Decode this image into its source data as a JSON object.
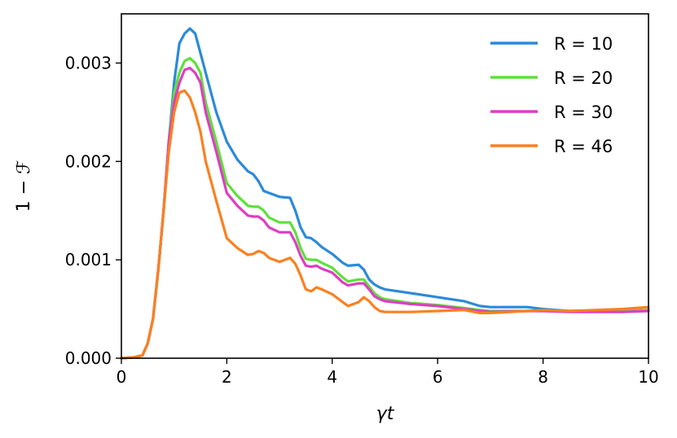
{
  "chart_data": {
    "type": "line",
    "xlabel": "γt",
    "ylabel": "1 − ℱ",
    "xlim": [
      0,
      10
    ],
    "ylim": [
      0,
      0.0035
    ],
    "xticks": [
      "0",
      "2",
      "4",
      "6",
      "8",
      "10"
    ],
    "yticks": [
      "0.000",
      "0.001",
      "0.002",
      "0.003"
    ],
    "legend_position": "top-right",
    "grid": false,
    "series": [
      {
        "name": "R = 10",
        "color": "#2b8ad9",
        "x": [
          0,
          0.25,
          0.4,
          0.5,
          0.6,
          0.7,
          0.8,
          0.9,
          1.0,
          1.1,
          1.2,
          1.3,
          1.4,
          1.5,
          1.6,
          1.8,
          2.0,
          2.2,
          2.4,
          2.5,
          2.6,
          2.7,
          2.8,
          3.0,
          3.2,
          3.3,
          3.4,
          3.5,
          3.6,
          3.7,
          3.8,
          4.0,
          4.2,
          4.3,
          4.5,
          4.6,
          4.7,
          4.8,
          4.9,
          5.0,
          5.5,
          6.0,
          6.5,
          6.8,
          7.0,
          7.7,
          8.0,
          8.5,
          9.0,
          9.5,
          10.0
        ],
        "y": [
          0,
          1e-05,
          3e-05,
          0.00015,
          0.0004,
          0.0009,
          0.0015,
          0.0022,
          0.0028,
          0.0032,
          0.0033,
          0.00335,
          0.0033,
          0.0031,
          0.0029,
          0.0025,
          0.0022,
          0.00202,
          0.0019,
          0.00187,
          0.0018,
          0.0017,
          0.00168,
          0.00164,
          0.00163,
          0.0015,
          0.00133,
          0.00123,
          0.00122,
          0.00118,
          0.00113,
          0.00106,
          0.00097,
          0.00094,
          0.00095,
          0.0009,
          0.0008,
          0.00075,
          0.00072,
          0.0007,
          0.00066,
          0.00062,
          0.00058,
          0.00053,
          0.00052,
          0.00052,
          0.0005,
          0.00048,
          0.00048,
          0.00048,
          0.00049
        ]
      },
      {
        "name": "R = 20",
        "color": "#5ee03a",
        "x": [
          0,
          0.25,
          0.4,
          0.5,
          0.6,
          0.7,
          0.8,
          0.9,
          1.0,
          1.1,
          1.2,
          1.3,
          1.4,
          1.5,
          1.6,
          1.8,
          2.0,
          2.2,
          2.4,
          2.5,
          2.6,
          2.7,
          2.8,
          3.0,
          3.2,
          3.3,
          3.4,
          3.5,
          3.6,
          3.7,
          3.8,
          4.0,
          4.2,
          4.3,
          4.5,
          4.6,
          4.7,
          4.8,
          4.9,
          5.0,
          5.5,
          6.0,
          6.5,
          6.8,
          7.0,
          7.7,
          8.0,
          8.5,
          9.0,
          9.5,
          10.0
        ],
        "y": [
          0,
          1e-05,
          3e-05,
          0.00015,
          0.0004,
          0.0009,
          0.0015,
          0.0022,
          0.0027,
          0.0029,
          0.00302,
          0.00305,
          0.003,
          0.0029,
          0.0026,
          0.0022,
          0.00178,
          0.00165,
          0.00155,
          0.00154,
          0.00154,
          0.0015,
          0.00143,
          0.00138,
          0.00138,
          0.00128,
          0.00112,
          0.00101,
          0.001,
          0.001,
          0.00097,
          0.00092,
          0.00082,
          0.00078,
          0.0008,
          0.0008,
          0.00073,
          0.00066,
          0.00062,
          0.0006,
          0.00056,
          0.00054,
          0.00051,
          0.00049,
          0.00048,
          0.00048,
          0.00048,
          0.00048,
          0.00048,
          0.00048,
          0.00049
        ]
      },
      {
        "name": "R = 30",
        "color": "#dd3ec3",
        "x": [
          0,
          0.25,
          0.4,
          0.5,
          0.6,
          0.7,
          0.8,
          0.9,
          1.0,
          1.1,
          1.2,
          1.3,
          1.4,
          1.5,
          1.6,
          1.8,
          2.0,
          2.2,
          2.4,
          2.5,
          2.6,
          2.7,
          2.8,
          3.0,
          3.2,
          3.3,
          3.4,
          3.5,
          3.6,
          3.7,
          3.8,
          4.0,
          4.2,
          4.3,
          4.5,
          4.6,
          4.7,
          4.8,
          4.9,
          5.0,
          5.5,
          6.0,
          6.5,
          6.8,
          7.0,
          7.7,
          8.0,
          8.5,
          9.0,
          9.5,
          10.0
        ],
        "y": [
          0,
          1e-05,
          3e-05,
          0.00015,
          0.0004,
          0.0009,
          0.0015,
          0.0022,
          0.0026,
          0.0028,
          0.00293,
          0.00295,
          0.0029,
          0.0028,
          0.0025,
          0.0021,
          0.00168,
          0.00155,
          0.00145,
          0.00144,
          0.00144,
          0.0014,
          0.00133,
          0.00128,
          0.00128,
          0.00118,
          0.00104,
          0.00094,
          0.00093,
          0.00094,
          0.00091,
          0.00087,
          0.00077,
          0.00074,
          0.00076,
          0.00076,
          0.0007,
          0.00063,
          0.0006,
          0.00058,
          0.00055,
          0.00053,
          0.0005,
          0.00048,
          0.00047,
          0.00048,
          0.00048,
          0.00047,
          0.00047,
          0.00047,
          0.00048
        ]
      },
      {
        "name": "R = 46",
        "color": "#fb8020",
        "x": [
          0,
          0.25,
          0.4,
          0.5,
          0.6,
          0.7,
          0.8,
          0.9,
          1.0,
          1.1,
          1.2,
          1.3,
          1.4,
          1.5,
          1.6,
          1.8,
          2.0,
          2.2,
          2.4,
          2.5,
          2.6,
          2.7,
          2.8,
          3.0,
          3.2,
          3.3,
          3.4,
          3.5,
          3.6,
          3.7,
          3.8,
          4.0,
          4.2,
          4.3,
          4.5,
          4.6,
          4.7,
          4.8,
          4.9,
          5.0,
          5.5,
          6.0,
          6.5,
          6.8,
          7.0,
          7.7,
          8.0,
          8.5,
          9.0,
          9.5,
          10.0
        ],
        "y": [
          0,
          1e-05,
          3e-05,
          0.00015,
          0.0004,
          0.0009,
          0.0015,
          0.0021,
          0.0025,
          0.0027,
          0.00272,
          0.00265,
          0.0025,
          0.0023,
          0.002,
          0.0016,
          0.00122,
          0.00112,
          0.00105,
          0.00106,
          0.00109,
          0.00107,
          0.00102,
          0.00098,
          0.00102,
          0.00096,
          0.00084,
          0.0007,
          0.00068,
          0.00072,
          0.0007,
          0.00065,
          0.00057,
          0.00053,
          0.00057,
          0.00062,
          0.00058,
          0.00052,
          0.00048,
          0.00047,
          0.00047,
          0.00048,
          0.00049,
          0.00046,
          0.00046,
          0.00048,
          0.00049,
          0.00048,
          0.00049,
          0.0005,
          0.00052
        ]
      }
    ]
  }
}
